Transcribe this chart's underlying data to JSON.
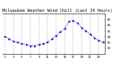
{
  "title": "Milwaukee Weather Wind Chill (Last 24 Hours)",
  "x_values": [
    0,
    1,
    2,
    3,
    4,
    5,
    6,
    7,
    8,
    9,
    10,
    11,
    12,
    13,
    14,
    15,
    16,
    17,
    18,
    19,
    20,
    21,
    22,
    23
  ],
  "y_values": [
    30,
    28,
    26,
    25,
    24,
    23,
    22,
    22,
    23,
    24,
    25,
    28,
    31,
    34,
    37,
    43,
    44,
    42,
    38,
    35,
    32,
    29,
    27,
    25
  ],
  "line_color": "#0000dd",
  "bg_color": "#ffffff",
  "plot_bg": "#ffffff",
  "grid_color": "#999999",
  "title_color": "#000000",
  "ylim": [
    15,
    50
  ],
  "ytick_values": [
    20,
    25,
    30,
    35,
    40,
    45
  ],
  "ytick_labels": [
    "20",
    "25",
    "30",
    "35",
    "40",
    "45"
  ],
  "xtick_positions": [
    0,
    2,
    4,
    6,
    8,
    10,
    12,
    14,
    16,
    18,
    20,
    22
  ],
  "xtick_labels": [
    "1",
    "3",
    "5",
    "7",
    "9",
    "11",
    "13",
    "15",
    "17",
    "19",
    "21",
    "23"
  ],
  "title_fontsize": 3.8,
  "tick_fontsize": 2.8,
  "line_width": 0.7,
  "marker_size": 1.4
}
